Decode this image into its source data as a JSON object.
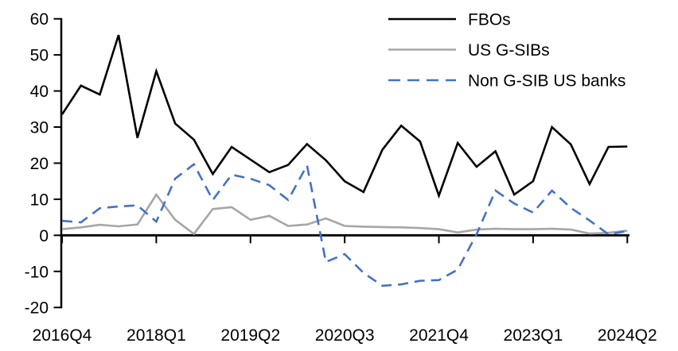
{
  "chart_data": {
    "type": "line",
    "title": "",
    "xlabel": "",
    "ylabel": "",
    "grid": false,
    "legend_position": "top-right",
    "ylim": [
      -20,
      60
    ],
    "y_tick_step": 10,
    "y_tick_labels": [
      "-20",
      "-10",
      "0",
      "10",
      "20",
      "30",
      "40",
      "50",
      "60"
    ],
    "x_tick_every": 5,
    "x_tick_labels": [
      "2016Q4",
      "2018Q1",
      "2019Q2",
      "2020Q3",
      "2021Q4",
      "2023Q1",
      "2024Q2"
    ],
    "x_labels": [
      "2016Q4",
      "2017Q1",
      "2017Q2",
      "2017Q3",
      "2017Q4",
      "2018Q1",
      "2018Q2",
      "2018Q3",
      "2018Q4",
      "2019Q1",
      "2019Q2",
      "2019Q3",
      "2019Q4",
      "2020Q1",
      "2020Q2",
      "2020Q3",
      "2020Q4",
      "2021Q1",
      "2021Q2",
      "2021Q3",
      "2021Q4",
      "2022Q1",
      "2022Q2",
      "2022Q3",
      "2022Q4",
      "2023Q1",
      "2023Q2",
      "2023Q3",
      "2023Q4",
      "2024Q1",
      "2024Q2"
    ],
    "axis_color": "#000000",
    "series": [
      {
        "name": "FBOs",
        "color": "#000000",
        "style": "solid",
        "values": [
          33.5,
          41.5,
          39.0,
          55.5,
          27.0,
          45.5,
          31.0,
          26.5,
          17.0,
          24.5,
          21.0,
          17.5,
          19.5,
          25.3,
          20.8,
          15.0,
          12.0,
          23.7,
          30.4,
          26.0,
          11.0,
          25.6,
          19.0,
          23.3,
          11.3,
          15.0,
          30.0,
          25.2,
          14.2,
          24.5,
          24.6
        ]
      },
      {
        "name": "US G-SIBs",
        "color": "#A6A6A6",
        "style": "solid",
        "values": [
          1.7,
          2.2,
          2.9,
          2.5,
          3.0,
          11.3,
          4.3,
          0.4,
          7.3,
          7.8,
          4.3,
          5.4,
          2.6,
          3.0,
          4.7,
          2.6,
          2.4,
          2.3,
          2.2,
          2.0,
          1.7,
          0.8,
          1.6,
          1.8,
          1.7,
          1.7,
          1.8,
          1.6,
          0.5,
          0.7,
          1.3
        ]
      },
      {
        "name": "Non G-SIB US banks",
        "color": "#4472C4",
        "style": "dashed",
        "values": [
          4.0,
          3.6,
          7.5,
          8.0,
          8.3,
          3.8,
          15.7,
          19.7,
          9.8,
          16.8,
          15.7,
          13.9,
          9.8,
          19.4,
          -7.4,
          -5.2,
          -10.4,
          -14.0,
          -13.6,
          -12.6,
          -12.4,
          -9.5,
          0.3,
          12.4,
          8.8,
          6.3,
          12.4,
          7.6,
          4.1,
          0.3,
          1.2
        ]
      }
    ]
  }
}
